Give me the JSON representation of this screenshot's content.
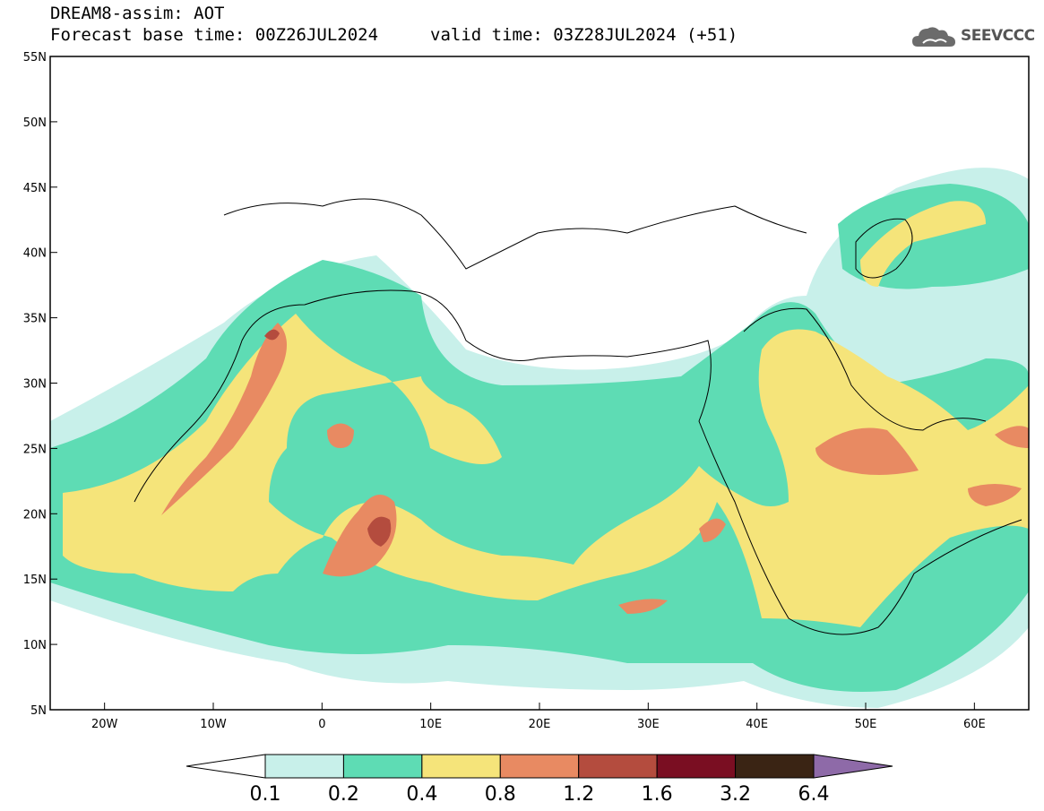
{
  "header": {
    "title": "DREAM8-assim: AOT",
    "base_time": "Forecast base time: 00Z26JUL2024",
    "valid_time": "valid time: 03Z28JUL2024 (+51)",
    "logo_text": "SEEVCCC"
  },
  "map": {
    "projection": "lat-lon",
    "lon_range": [
      -25,
      65
    ],
    "lat_range": [
      5,
      55
    ],
    "lat_ticks": [
      "5N",
      "10N",
      "15N",
      "20N",
      "25N",
      "30N",
      "35N",
      "40N",
      "45N",
      "50N",
      "55N"
    ],
    "lon_ticks": [
      "20W",
      "10W",
      "0",
      "10E",
      "20E",
      "30E",
      "40E",
      "50E",
      "60E"
    ]
  },
  "colorbar": {
    "levels": [
      "0.1",
      "0.2",
      "0.4",
      "0.8",
      "1.2",
      "1.6",
      "3.2",
      "6.4"
    ],
    "colors": [
      "#ffffff",
      "#c8f0ea",
      "#5edcb4",
      "#f5e47a",
      "#e88a62",
      "#b44c3e",
      "#7a0e22",
      "#3a2414",
      "#8e6aa8"
    ]
  }
}
